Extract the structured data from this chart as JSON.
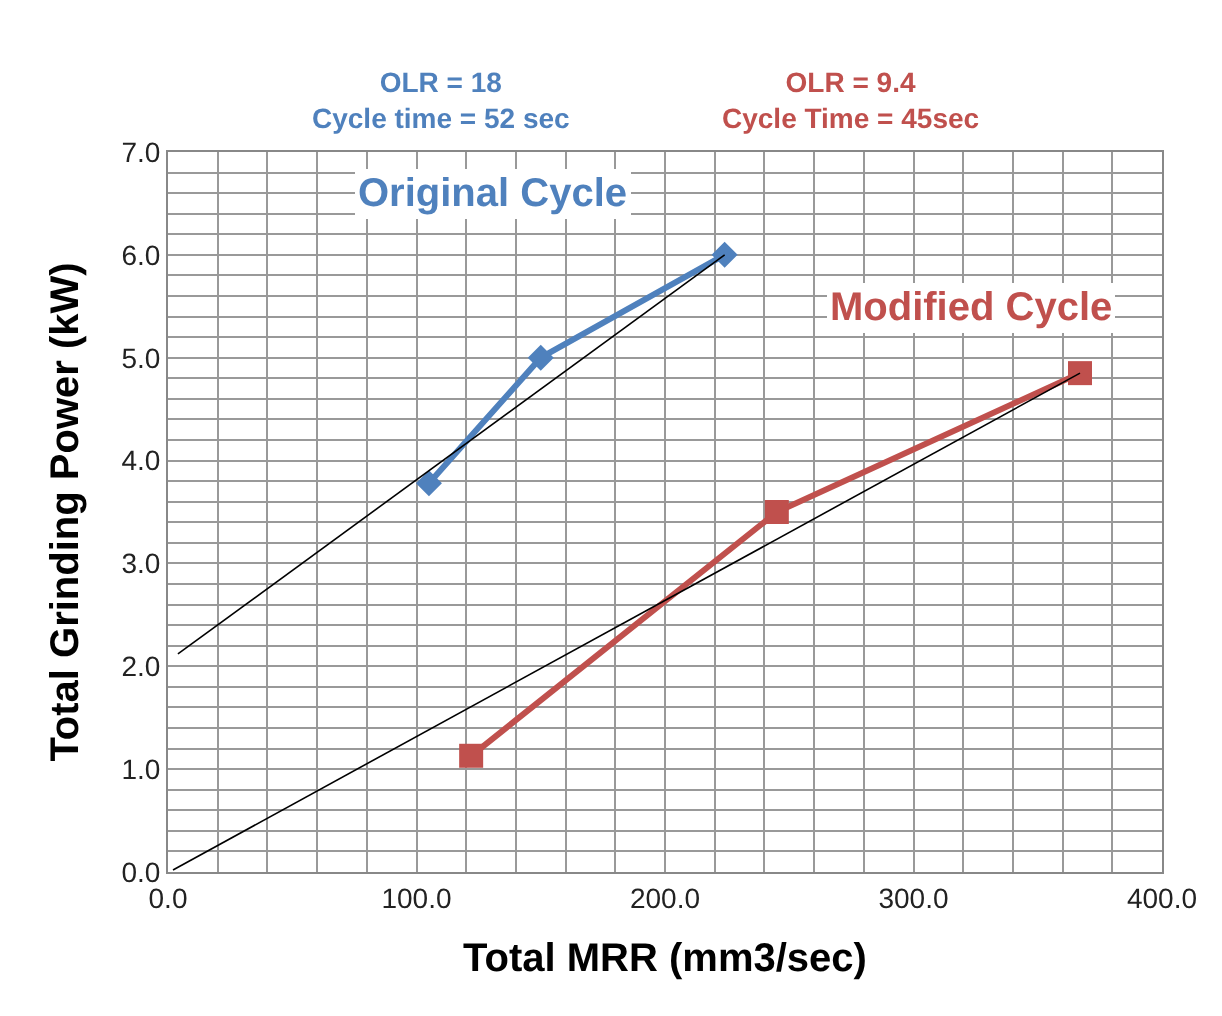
{
  "chart_data": {
    "type": "line",
    "xlabel": "Total MRR (mm3/sec)",
    "ylabel": "Total Grinding Power (kW)",
    "annotations": [
      "OLR = 18\nCycle time = 52 sec",
      "OLR = 9.4\nCycle Time = 45sec"
    ],
    "series": [
      {
        "name": "Original Cycle",
        "color": "#4f81bd",
        "x": [
          105,
          150,
          224
        ],
        "values": [
          3.78,
          5.0,
          6.0
        ],
        "marker": "diamond"
      },
      {
        "name": "Modified Cycle",
        "color": "#c0504d",
        "x": [
          122,
          245,
          367
        ],
        "values": [
          1.13,
          3.5,
          4.85
        ],
        "marker": "square"
      },
      {
        "color": "#000000",
        "x": [
          4,
          224
        ],
        "values": [
          2.12,
          6.0
        ],
        "marker": "none"
      },
      {
        "color": "#000000",
        "x": [
          2,
          367
        ],
        "values": [
          0.02,
          4.85
        ],
        "marker": "none"
      }
    ],
    "xlim": [
      0,
      400
    ],
    "ylim": [
      0,
      7
    ],
    "xticks": [
      {
        "value": 0,
        "label": "0.0"
      },
      {
        "value": 20,
        "label": null
      },
      {
        "value": 40,
        "label": null
      },
      {
        "value": 60,
        "label": null
      },
      {
        "value": 80,
        "label": null
      },
      {
        "value": 100,
        "label": "100.0"
      },
      {
        "value": 120,
        "label": null
      },
      {
        "value": 140,
        "label": null
      },
      {
        "value": 160,
        "label": null
      },
      {
        "value": 180,
        "label": null
      },
      {
        "value": 200,
        "label": "200.0"
      },
      {
        "value": 220,
        "label": null
      },
      {
        "value": 240,
        "label": null
      },
      {
        "value": 260,
        "label": null
      },
      {
        "value": 280,
        "label": null
      },
      {
        "value": 300,
        "label": "300.0"
      },
      {
        "value": 320,
        "label": null
      },
      {
        "value": 340,
        "label": null
      },
      {
        "value": 360,
        "label": null
      },
      {
        "value": 380,
        "label": null
      },
      {
        "value": 400,
        "label": "400.0"
      }
    ],
    "yticks": [
      {
        "value": 0,
        "label": "0.0"
      },
      {
        "value": 0.2,
        "label": null
      },
      {
        "value": 0.4,
        "label": null
      },
      {
        "value": 0.6,
        "label": null
      },
      {
        "value": 0.8,
        "label": null
      },
      {
        "value": 1,
        "label": "1.0"
      },
      {
        "value": 1.2,
        "label": null
      },
      {
        "value": 1.4,
        "label": null
      },
      {
        "value": 1.6,
        "label": null
      },
      {
        "value": 1.8,
        "label": null
      },
      {
        "value": 2,
        "label": "2.0"
      },
      {
        "value": 2.2,
        "label": null
      },
      {
        "value": 2.4,
        "label": null
      },
      {
        "value": 2.6,
        "label": null
      },
      {
        "value": 2.8,
        "label": null
      },
      {
        "value": 3,
        "label": "3.0"
      },
      {
        "value": 3.2,
        "label": null
      },
      {
        "value": 3.4,
        "label": null
      },
      {
        "value": 3.6,
        "label": null
      },
      {
        "value": 3.8,
        "label": null
      },
      {
        "value": 4,
        "label": "4.0"
      },
      {
        "value": 4.2,
        "label": null
      },
      {
        "value": 4.4,
        "label": null
      },
      {
        "value": 4.6,
        "label": null
      },
      {
        "value": 4.8,
        "label": null
      },
      {
        "value": 5,
        "label": "5.0"
      },
      {
        "value": 5.2,
        "label": null
      },
      {
        "value": 5.4,
        "label": null
      },
      {
        "value": 5.6,
        "label": null
      },
      {
        "value": 5.8,
        "label": null
      },
      {
        "value": 6,
        "label": "6.0"
      },
      {
        "value": 6.2,
        "label": null
      },
      {
        "value": 6.4,
        "label": null
      },
      {
        "value": 6.6,
        "label": null
      },
      {
        "value": 6.8,
        "label": null
      },
      {
        "value": 7,
        "label": "7.0"
      }
    ],
    "grid": true,
    "legend": false
  }
}
